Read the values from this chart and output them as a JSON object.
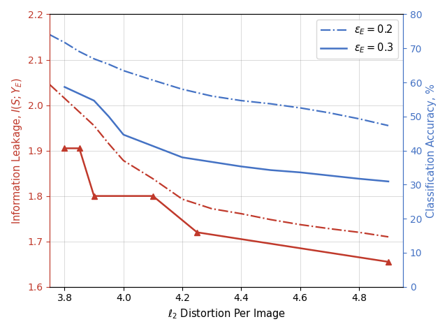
{
  "blue_dashdot_x": [
    3.75,
    3.8,
    3.85,
    3.9,
    3.95,
    4.0,
    4.1,
    4.2,
    4.3,
    4.4,
    4.5,
    4.6,
    4.7,
    4.8,
    4.9
  ],
  "blue_dashdot_y": [
    2.155,
    2.138,
    2.118,
    2.102,
    2.09,
    2.076,
    2.055,
    2.035,
    2.02,
    2.01,
    2.003,
    1.994,
    1.983,
    1.97,
    1.955
  ],
  "blue_solid_x": [
    3.8,
    3.85,
    3.9,
    3.95,
    4.0,
    4.1,
    4.2,
    4.3,
    4.4,
    4.5,
    4.6,
    4.7,
    4.8,
    4.9
  ],
  "blue_solid_y": [
    2.04,
    2.025,
    2.01,
    1.975,
    1.935,
    1.91,
    1.885,
    1.875,
    1.865,
    1.857,
    1.852,
    1.845,
    1.838,
    1.832
  ],
  "red_dashdot_x": [
    3.75,
    3.8,
    3.85,
    3.9,
    3.95,
    4.0,
    4.1,
    4.2,
    4.3,
    4.4,
    4.5,
    4.6,
    4.7,
    4.8,
    4.9
  ],
  "red_dashdot_y": [
    2.045,
    2.015,
    1.985,
    1.955,
    1.915,
    1.878,
    1.838,
    1.793,
    1.772,
    1.761,
    1.748,
    1.737,
    1.728,
    1.72,
    1.71
  ],
  "red_solid_x": [
    3.8,
    3.85,
    3.9,
    4.1,
    4.25,
    4.9
  ],
  "red_solid_y": [
    1.905,
    1.905,
    1.8,
    1.8,
    1.72,
    1.655
  ],
  "ylim_left": [
    1.6,
    2.2
  ],
  "ylim_right": [
    0,
    80
  ],
  "xlim": [
    3.75,
    4.95
  ],
  "xticks": [
    3.8,
    4.0,
    4.2,
    4.4,
    4.6,
    4.8
  ],
  "yticks_left": [
    1.6,
    1.7,
    1.8,
    1.9,
    2.0,
    2.1,
    2.2
  ],
  "yticks_right": [
    0,
    10,
    20,
    30,
    40,
    50,
    60,
    70,
    80
  ],
  "xlabel": "$\\ell_2$ Distortion Per Image",
  "ylabel_left": "Information Leakage, $I(S; Y_E)$",
  "ylabel_right": "Classification Accuracy, %",
  "label_eps02": "$\\varepsilon_E = 0.2$",
  "label_eps03": "$\\varepsilon_E = 0.3$",
  "blue_color": "#4472c4",
  "red_color": "#c0392b",
  "figsize": [
    6.4,
    4.74
  ],
  "dpi": 100
}
